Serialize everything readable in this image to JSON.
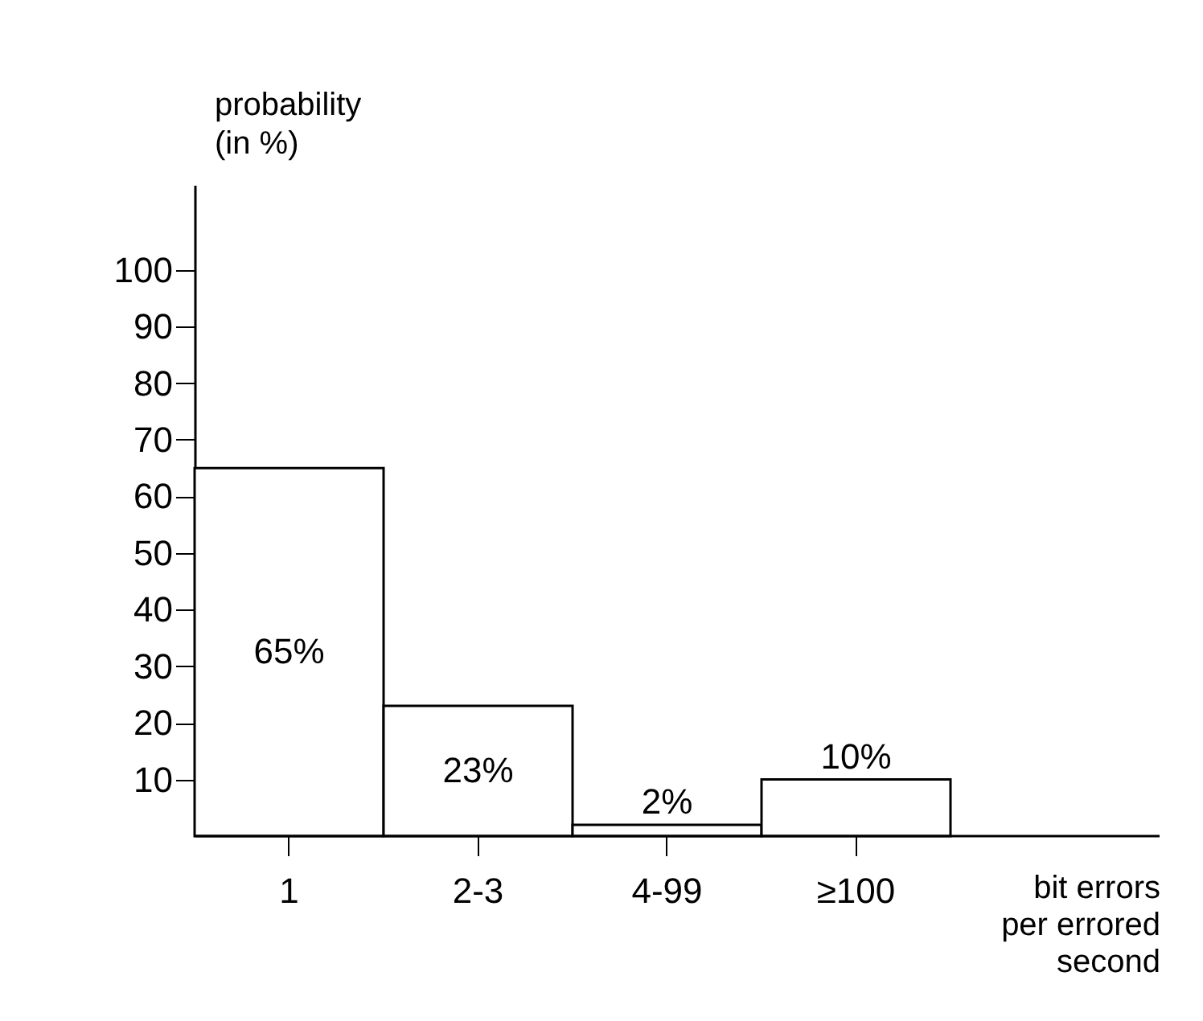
{
  "chart_data": {
    "type": "bar",
    "xlabel": "bit errors per errored second",
    "ylabel": "probability (in %)",
    "categories": [
      "1",
      "2-3",
      "4-99",
      "≥100"
    ],
    "values": [
      65,
      23,
      2,
      10
    ],
    "value_labels": [
      "65%",
      "23%",
      "2%",
      "10%"
    ],
    "color": "#ffffff",
    "ylim": [
      0,
      115
    ],
    "yticks": [
      10,
      20,
      30,
      40,
      50,
      60,
      70,
      80,
      90,
      100
    ],
    "grid": false
  }
}
